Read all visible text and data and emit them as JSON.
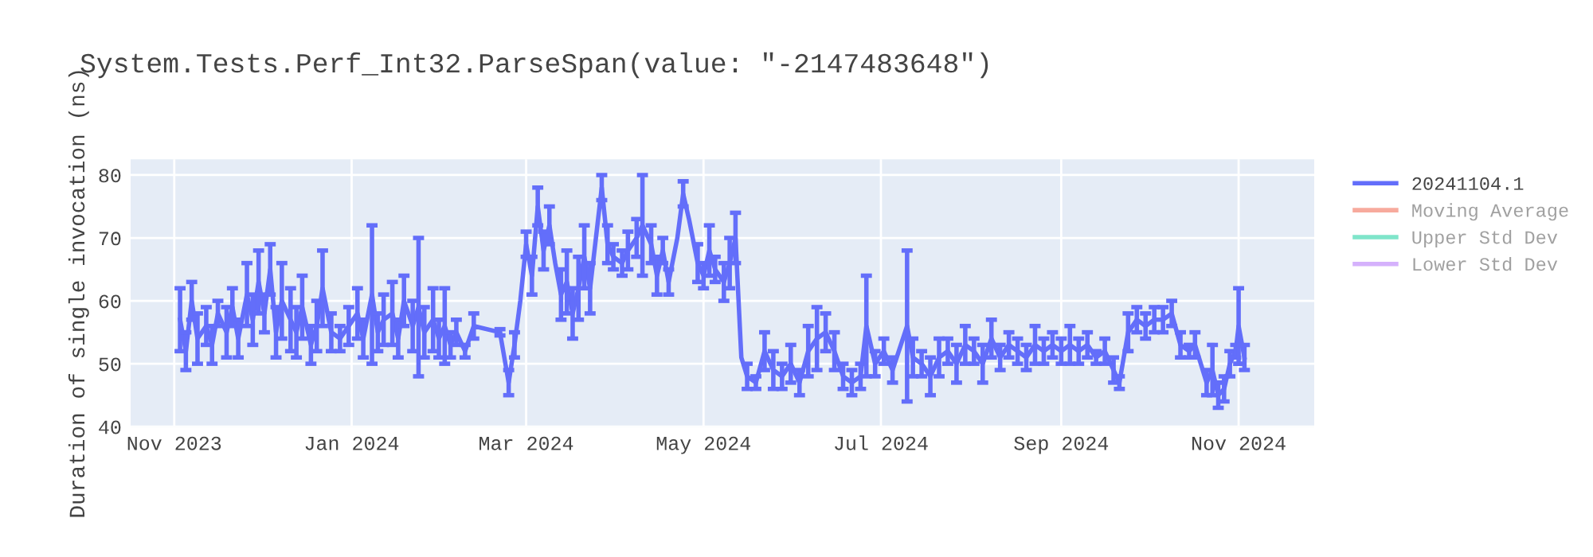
{
  "chart_data": {
    "type": "line",
    "title": "System.Tests.Perf_Int32.ParseSpan(value: \"-2147483648\")",
    "ylabel": "Duration of single invocation (ns)",
    "x": [
      "2023-11-03",
      "2023-11-05",
      "2023-11-07",
      "2023-11-09",
      "2023-11-12",
      "2023-11-14",
      "2023-11-16",
      "2023-11-19",
      "2023-11-21",
      "2023-11-23",
      "2023-11-26",
      "2023-11-28",
      "2023-11-30",
      "2023-12-02",
      "2023-12-04",
      "2023-12-06",
      "2023-12-08",
      "2023-12-11",
      "2023-12-13",
      "2023-12-15",
      "2023-12-18",
      "2023-12-20",
      "2023-12-22",
      "2023-12-25",
      "2023-12-28",
      "2023-12-31",
      "2024-01-03",
      "2024-01-05",
      "2024-01-08",
      "2024-01-10",
      "2024-01-12",
      "2024-01-15",
      "2024-01-17",
      "2024-01-19",
      "2024-01-22",
      "2024-01-24",
      "2024-01-26",
      "2024-01-29",
      "2024-01-31",
      "2024-02-02",
      "2024-02-04",
      "2024-02-06",
      "2024-02-09",
      "2024-02-12",
      "2024-02-21",
      "2024-02-24",
      "2024-02-26",
      "2024-02-28",
      "2024-03-01",
      "2024-03-03",
      "2024-03-05",
      "2024-03-07",
      "2024-03-09",
      "2024-03-11",
      "2024-03-13",
      "2024-03-15",
      "2024-03-17",
      "2024-03-19",
      "2024-03-21",
      "2024-03-23",
      "2024-03-25",
      "2024-03-27",
      "2024-03-29",
      "2024-03-31",
      "2024-04-03",
      "2024-04-05",
      "2024-04-08",
      "2024-04-10",
      "2024-04-13",
      "2024-04-15",
      "2024-04-17",
      "2024-04-19",
      "2024-04-22",
      "2024-04-24",
      "2024-04-26",
      "2024-04-29",
      "2024-05-01",
      "2024-05-03",
      "2024-05-05",
      "2024-05-08",
      "2024-05-10",
      "2024-05-12",
      "2024-05-14",
      "2024-05-16",
      "2024-05-19",
      "2024-05-22",
      "2024-05-25",
      "2024-05-28",
      "2024-05-31",
      "2024-06-03",
      "2024-06-06",
      "2024-06-09",
      "2024-06-12",
      "2024-06-15",
      "2024-06-18",
      "2024-06-21",
      "2024-06-24",
      "2024-06-26",
      "2024-06-29",
      "2024-07-02",
      "2024-07-05",
      "2024-07-10",
      "2024-07-12",
      "2024-07-15",
      "2024-07-18",
      "2024-07-21",
      "2024-07-24",
      "2024-07-27",
      "2024-07-30",
      "2024-08-02",
      "2024-08-05",
      "2024-08-08",
      "2024-08-11",
      "2024-08-14",
      "2024-08-17",
      "2024-08-20",
      "2024-08-23",
      "2024-08-26",
      "2024-08-29",
      "2024-09-01",
      "2024-09-04",
      "2024-09-07",
      "2024-09-10",
      "2024-09-13",
      "2024-09-16",
      "2024-09-19",
      "2024-09-21",
      "2024-09-24",
      "2024-09-27",
      "2024-09-30",
      "2024-10-03",
      "2024-10-06",
      "2024-10-09",
      "2024-10-12",
      "2024-10-15",
      "2024-10-17",
      "2024-10-19",
      "2024-10-21",
      "2024-10-23",
      "2024-10-25",
      "2024-10-27",
      "2024-10-29",
      "2024-10-31",
      "2024-11-01",
      "2024-11-03"
    ],
    "series": [
      {
        "name": "20241104.1",
        "color": "#636efa",
        "values": [
          57,
          52,
          60,
          54,
          56,
          53,
          58,
          55,
          59,
          54,
          61,
          57,
          63,
          58,
          65,
          55,
          60,
          57,
          55,
          59,
          53,
          56,
          62,
          55,
          54,
          56,
          58,
          54,
          61,
          55,
          57,
          58,
          54,
          60,
          56,
          59,
          55,
          57,
          54,
          56,
          53,
          55,
          52,
          56,
          55,
          47,
          53,
          60,
          69,
          64,
          75,
          68,
          72,
          66,
          61,
          63,
          58,
          62,
          67,
          62,
          70,
          78,
          69,
          67,
          66,
          68,
          70,
          72,
          69,
          64,
          68,
          63,
          70,
          77,
          73,
          66,
          64,
          68,
          65,
          63,
          66,
          70,
          51,
          48,
          47,
          52,
          49,
          48,
          50,
          47,
          52,
          54,
          55,
          52,
          48,
          47,
          48,
          56,
          50,
          52,
          49,
          56,
          51,
          50,
          48,
          51,
          52,
          50,
          53,
          52,
          50,
          54,
          51,
          53,
          52,
          51,
          53,
          52,
          53,
          52,
          53,
          52,
          53,
          51,
          52,
          49,
          47,
          55,
          57,
          56,
          57,
          57,
          58,
          53,
          52,
          53,
          50,
          47,
          49,
          45,
          46,
          50,
          52,
          56,
          51
        ],
        "errors": [
          5,
          3,
          3,
          4,
          3,
          3,
          2,
          4,
          3,
          3,
          5,
          4,
          5,
          3,
          4,
          4,
          6,
          5,
          4,
          5,
          3,
          4,
          6,
          3,
          2,
          3,
          4,
          3,
          11,
          3,
          4,
          5,
          3,
          4,
          4,
          11,
          4,
          5,
          3,
          6,
          2,
          2,
          1,
          2,
          0.5,
          2,
          2,
          null,
          2,
          3,
          3,
          3,
          3,
          null,
          4,
          5,
          4,
          5,
          5,
          4,
          null,
          2,
          3,
          2,
          2,
          3,
          3,
          8,
          3,
          3,
          2,
          2,
          null,
          2,
          null,
          3,
          2,
          4,
          2,
          3,
          4,
          4,
          null,
          2,
          1,
          3,
          3,
          2,
          3,
          2,
          4,
          5,
          3,
          3,
          2,
          2,
          2,
          8,
          2,
          2,
          2,
          12,
          3,
          2,
          3,
          3,
          2,
          3,
          3,
          2,
          3,
          3,
          2,
          2,
          2,
          2,
          3,
          2,
          2,
          2,
          3,
          2,
          2,
          1,
          2,
          2,
          1,
          3,
          2,
          2,
          2,
          2,
          2,
          2,
          1,
          2,
          null,
          2,
          4,
          2,
          2,
          2,
          1,
          6,
          2
        ]
      },
      {
        "name": "Moving Average",
        "color": "#ef553b",
        "values": [
          null,
          null,
          null,
          null,
          null,
          null,
          null,
          null,
          null,
          null,
          null,
          null,
          null,
          null,
          null,
          null,
          null,
          null,
          null,
          null,
          null,
          null,
          null,
          null,
          null,
          null,
          null,
          null,
          null,
          null,
          null,
          null,
          null,
          null,
          null,
          null,
          null,
          null,
          null,
          null,
          null,
          null,
          null,
          null,
          null,
          null,
          null,
          null,
          null,
          null,
          null,
          null,
          null,
          null,
          null,
          null,
          null,
          null,
          null,
          null,
          null,
          null,
          null,
          null,
          null,
          null,
          null,
          null,
          null,
          null,
          null,
          null,
          null,
          null,
          null,
          null,
          null,
          null,
          null,
          null,
          null,
          null,
          null,
          null,
          null,
          null,
          null,
          null,
          null,
          null,
          null,
          null,
          null,
          null,
          null,
          null,
          null,
          null,
          null,
          null,
          null,
          null,
          null,
          null,
          null,
          null,
          null,
          null,
          null,
          null,
          null,
          null,
          null,
          null,
          null,
          null,
          null,
          null,
          null,
          null,
          null,
          null,
          null,
          null,
          null,
          null,
          null,
          null,
          null,
          null,
          null,
          null,
          null,
          null,
          null,
          null,
          null,
          null,
          null,
          null,
          null,
          null,
          null,
          null,
          null
        ]
      },
      {
        "name": "Upper Std Dev",
        "color": "#00cc96",
        "values": [
          null,
          null,
          null,
          null,
          null,
          null,
          null,
          null,
          null,
          null,
          null,
          null,
          null,
          null,
          null,
          null,
          null,
          null,
          null,
          null,
          null,
          null,
          null,
          null,
          null,
          null,
          null,
          null,
          null,
          null,
          null,
          null,
          null,
          null,
          null,
          null,
          null,
          null,
          null,
          null,
          null,
          null,
          null,
          null,
          null,
          null,
          null,
          null,
          null,
          null,
          null,
          null,
          null,
          null,
          null,
          null,
          null,
          null,
          null,
          null,
          null,
          null,
          null,
          null,
          null,
          null,
          null,
          null,
          null,
          null,
          null,
          null,
          null,
          null,
          null,
          null,
          null,
          null,
          null,
          null,
          null,
          null,
          null,
          null,
          null,
          null,
          null,
          null,
          null,
          null,
          null,
          null,
          null,
          null,
          null,
          null,
          null,
          null,
          null,
          null,
          null,
          null,
          null,
          null,
          null,
          null,
          null,
          null,
          null,
          null,
          null,
          null,
          null,
          null,
          null,
          null,
          null,
          null,
          null,
          null,
          null,
          null,
          null,
          null,
          null,
          null,
          null,
          null,
          null,
          null,
          null,
          null,
          null,
          null,
          null,
          null,
          null,
          null,
          null,
          null,
          null,
          null,
          null,
          null,
          null
        ]
      },
      {
        "name": "Lower Std Dev",
        "color": "#ab63fa",
        "values": [
          null,
          null,
          null,
          null,
          null,
          null,
          null,
          null,
          null,
          null,
          null,
          null,
          null,
          null,
          null,
          null,
          null,
          null,
          null,
          null,
          null,
          null,
          null,
          null,
          null,
          null,
          null,
          null,
          null,
          null,
          null,
          null,
          null,
          null,
          null,
          null,
          null,
          null,
          null,
          null,
          null,
          null,
          null,
          null,
          null,
          null,
          null,
          null,
          null,
          null,
          null,
          null,
          null,
          null,
          null,
          null,
          null,
          null,
          null,
          null,
          null,
          null,
          null,
          null,
          null,
          null,
          null,
          null,
          null,
          null,
          null,
          null,
          null,
          null,
          null,
          null,
          null,
          null,
          null,
          null,
          null,
          null,
          null,
          null,
          null,
          null,
          null,
          null,
          null,
          null,
          null,
          null,
          null,
          null,
          null,
          null,
          null,
          null,
          null,
          null,
          null,
          null,
          null,
          null,
          null,
          null,
          null,
          null,
          null,
          null,
          null,
          null,
          null,
          null,
          null,
          null,
          null,
          null,
          null,
          null,
          null,
          null,
          null,
          null,
          null,
          null,
          null,
          null,
          null,
          null,
          null,
          null,
          null,
          null,
          null,
          null,
          null,
          null,
          null,
          null,
          null,
          null,
          null,
          null,
          null
        ]
      }
    ],
    "xlim": [
      "2023-10-17",
      "2024-11-27"
    ],
    "xticks": [
      {
        "value": "2023-11-01",
        "label": "Nov 2023"
      },
      {
        "value": "2024-01-01",
        "label": "Jan 2024"
      },
      {
        "value": "2024-03-01",
        "label": "Mar 2024"
      },
      {
        "value": "2024-05-01",
        "label": "May 2024"
      },
      {
        "value": "2024-07-01",
        "label": "Jul 2024"
      },
      {
        "value": "2024-09-01",
        "label": "Sep 2024"
      },
      {
        "value": "2024-11-01",
        "label": "Nov 2024"
      }
    ],
    "ylim": [
      40,
      82.5
    ],
    "yticks": [
      40,
      50,
      60,
      70,
      80
    ],
    "grid": true,
    "legend": "right",
    "line_style": "solid"
  }
}
